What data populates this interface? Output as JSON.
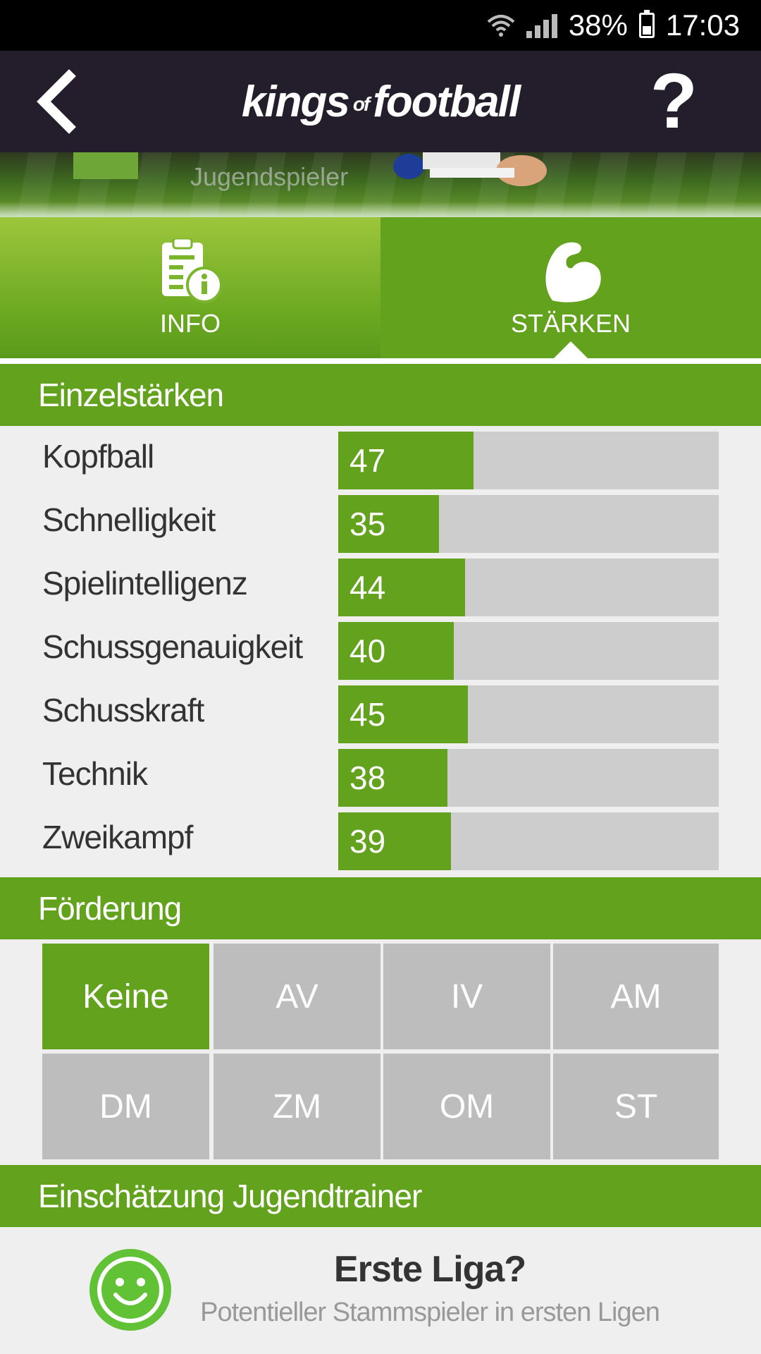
{
  "status_bar": {
    "battery_percent": "38%",
    "time": "17:03",
    "icons": [
      "wifi-icon",
      "signal-icon",
      "battery-icon"
    ]
  },
  "header": {
    "logo_main_1": "kings",
    "logo_of": "of",
    "logo_main_2": "football",
    "help_label": "?"
  },
  "banner": {
    "player_type": "Jugendspieler"
  },
  "tabs": [
    {
      "label": "INFO",
      "icon": "document-info-icon",
      "active": false
    },
    {
      "label": "STÄRKEN",
      "icon": "muscle-arm-icon",
      "active": true
    }
  ],
  "sections": {
    "einzelstaerken": "Einzelstärken",
    "foerderung": "Förderung",
    "einschaetzung": "Einschätzung Jugendtrainer"
  },
  "stats": [
    {
      "name": "Kopfball",
      "value": 47
    },
    {
      "name": "Schnelligkeit",
      "value": 35
    },
    {
      "name": "Spielintelligenz",
      "value": 44
    },
    {
      "name": "Schussgenauigkeit",
      "value": 40
    },
    {
      "name": "Schusskraft",
      "value": 45
    },
    {
      "name": "Technik",
      "value": 38
    },
    {
      "name": "Zweikampf",
      "value": 39
    }
  ],
  "stat_max": 132,
  "foerderung_options": [
    {
      "label": "Keine",
      "selected": true
    },
    {
      "label": "AV",
      "selected": false
    },
    {
      "label": "IV",
      "selected": false
    },
    {
      "label": "AM",
      "selected": false
    },
    {
      "label": "DM",
      "selected": false
    },
    {
      "label": "ZM",
      "selected": false
    },
    {
      "label": "OM",
      "selected": false
    },
    {
      "label": "ST",
      "selected": false
    }
  ],
  "assessment": {
    "icon": "smiley-icon",
    "title": "Erste Liga?",
    "subtitle": "Potentieller Stammspieler in ersten Ligen"
  },
  "colors": {
    "accent_green": "#62a21c",
    "header_dark": "#241d2b",
    "inactive_gray": "#bdbdbd",
    "track_gray": "#cdcdcd"
  }
}
